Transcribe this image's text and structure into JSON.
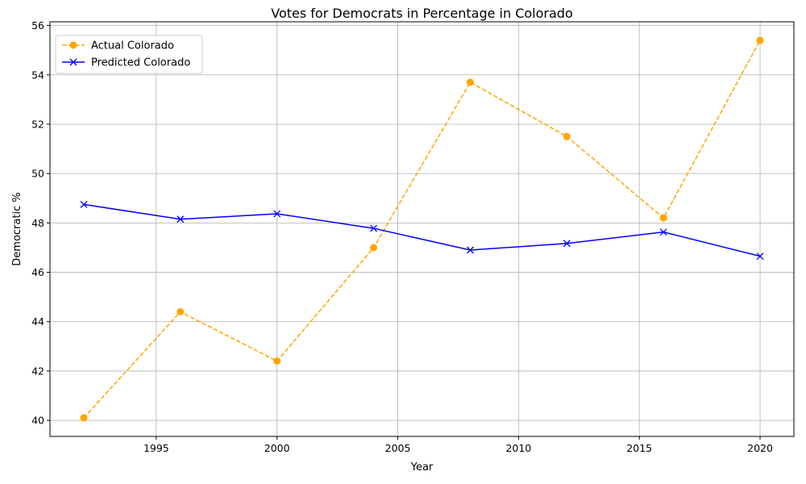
{
  "chart_data": {
    "type": "line",
    "title": "Votes for Democrats in Percentage in Colorado",
    "xlabel": "Year",
    "ylabel": "Democratic %",
    "x": [
      1992,
      1996,
      2000,
      2004,
      2008,
      2012,
      2016,
      2020
    ],
    "xlim": [
      1990.6,
      2021.4
    ],
    "ylim": [
      39.35,
      56.15
    ],
    "xticks": [
      "1995",
      "2000",
      "2005",
      "2010",
      "2015",
      "2020"
    ],
    "yticks": [
      "40",
      "42",
      "44",
      "46",
      "48",
      "50",
      "52",
      "54",
      "56"
    ],
    "grid": true,
    "legend_position": "top-left",
    "series": [
      {
        "name": "Actual Colorado",
        "values": [
          40.1,
          44.4,
          42.4,
          47.0,
          53.7,
          51.5,
          48.2,
          55.4
        ],
        "color": "#FFA500",
        "line_style": "dashed",
        "marker": "circle"
      },
      {
        "name": "Predicted Colorado",
        "values": [
          48.75,
          48.15,
          48.37,
          47.78,
          46.9,
          47.17,
          47.63,
          46.65
        ],
        "color": "#0000FF",
        "line_style": "solid",
        "marker": "x"
      }
    ]
  }
}
